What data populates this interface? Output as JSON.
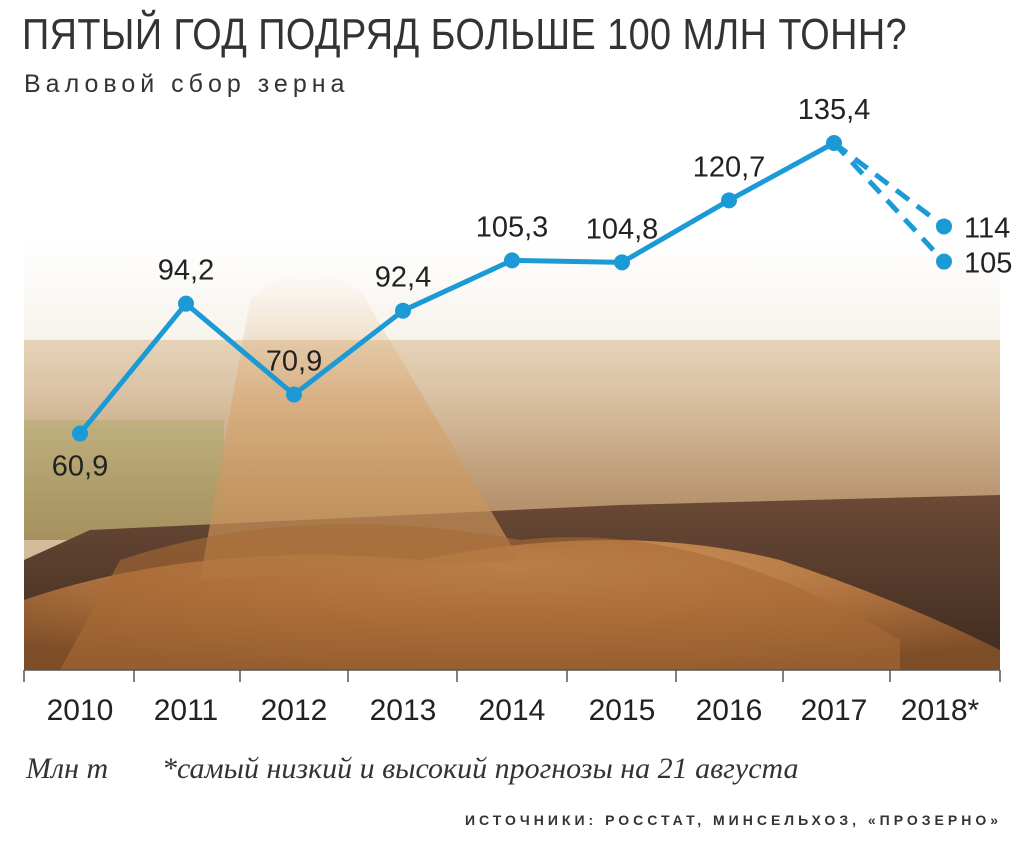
{
  "header": {
    "title": "ПЯТЫЙ ГОД ПОДРЯД БОЛЬШЕ 100 МЛН ТОНН?",
    "subtitle": "Валовой сбор зерна"
  },
  "footer": {
    "unit": "Млн т",
    "note": "*самый низкий и высокий прогнозы на 21 августа",
    "source": "ИСТОЧНИКИ: РОССТАТ, МИНСЕЛЬХОЗ, «ПРОЗЕРНО»"
  },
  "colors": {
    "line": "#1b9ad6",
    "axis": "#555555",
    "text": "#222222"
  },
  "chart_data": {
    "type": "line",
    "title": "ПЯТЫЙ ГОД ПОДРЯД БОЛЬШЕ 100 МЛН ТОНН?",
    "subtitle": "Валовой сбор зерна",
    "ylabel": "Млн т",
    "categories": [
      "2010",
      "2011",
      "2012",
      "2013",
      "2014",
      "2015",
      "2016",
      "2017",
      "2018*"
    ],
    "series": [
      {
        "values": [
          60.9,
          94.2,
          70.9,
          92.4,
          105.3,
          104.8,
          120.7,
          135.4,
          null
        ],
        "labels": [
          "60,9",
          "94,2",
          "70,9",
          "92,4",
          "105,3",
          "104,8",
          "120,7",
          "135,4",
          ""
        ],
        "style": "solid"
      }
    ],
    "forecasts": [
      {
        "from": "2017",
        "to": "2018*",
        "value": 114,
        "label": "114",
        "style": "dashed"
      },
      {
        "from": "2017",
        "to": "2018*",
        "value": 105,
        "label": "105",
        "style": "dashed"
      }
    ],
    "grid": false,
    "background": "photo of grain being poured into a truck trailer over a field"
  }
}
